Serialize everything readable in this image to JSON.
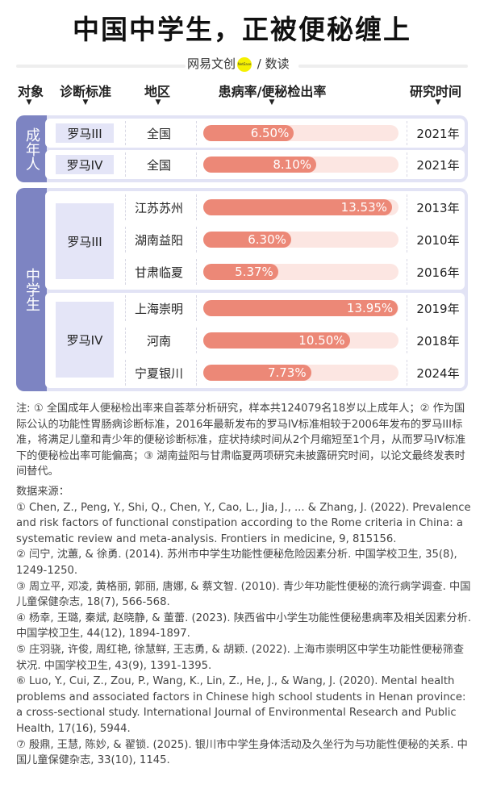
{
  "title": "中国中学生，正被便秘缠上",
  "brand": {
    "name": "网易文创",
    "badge": "NetEase",
    "sep": "/",
    "sub": "数读"
  },
  "headers": [
    "对象",
    "诊断标准",
    "地区",
    "患病率/便秘检出率",
    "研究时间"
  ],
  "arrow": "▼",
  "colors": {
    "group": "#7d84c2",
    "bar": "#ec8877",
    "track": "#fce6e2"
  },
  "rate_axis_max": 14,
  "adults": {
    "label": "成年人",
    "rows": [
      {
        "criterion": "罗马III",
        "region": "全国",
        "rate": 6.5,
        "rate_label": "6.50%",
        "year": "2021年"
      },
      {
        "criterion": "罗马IV",
        "region": "全国",
        "rate": 8.1,
        "rate_label": "8.10%",
        "year": "2021年"
      }
    ]
  },
  "students": {
    "label": "中学生",
    "criteria": [
      "罗马III",
      "罗马IV"
    ],
    "rows": [
      {
        "region": "江苏苏州",
        "rate": 13.53,
        "rate_label": "13.53%",
        "year": "2013年"
      },
      {
        "region": "湖南益阳",
        "rate": 6.3,
        "rate_label": "6.30%",
        "year": "2010年"
      },
      {
        "region": "甘肃临夏",
        "rate": 5.37,
        "rate_label": "5.37%",
        "year": "2016年"
      },
      {
        "region": "上海崇明",
        "rate": 13.95,
        "rate_label": "13.95%",
        "year": "2019年"
      },
      {
        "region": "河南",
        "rate": 10.5,
        "rate_label": "10.50%",
        "year": "2018年"
      },
      {
        "region": "宁夏银川",
        "rate": 7.73,
        "rate_label": "7.73%",
        "year": "2024年"
      }
    ]
  },
  "notes": "注: ① 全国成年人便秘检出率来自荟萃分析研究，样本共124079名18岁以上成年人；② 作为国际公认的功能性胃肠病诊断标准，2016年最新发布的罗马IV标准相较于2006年发布的罗马III标准，将满足儿童和青少年的便秘诊断标准，症状持续时间从2个月缩短至1个月，从而罗马IV标准下的便秘检出率可能偏高；③ 湖南益阳与甘肃临夏两项研究未披露研究时间，以论文最终发表时间替代。",
  "sources_title": "数据来源：",
  "sources": [
    "① Chen, Z., Peng, Y., Shi, Q., Chen, Y., Cao, L., Jia, J., ... & Zhang, J. (2022). Prevalence and risk factors of functional constipation according to the Rome criteria in China: a systematic review and meta-analysis. Frontiers in medicine, 9, 815156.",
    "② 闫宁, 沈蕙, & 徐勇. (2014). 苏州市中学生功能性便秘危险因素分析. 中国学校卫生, 35(8), 1249-1250.",
    "③ 周立平, 邓凌, 黄格丽, 郭丽, 唐娜, & 蔡文智. (2010). 青少年功能性便秘的流行病学调查. 中国儿童保健杂志, 18(7), 566-568.",
    "④ 杨幸, 王璐, 秦斌, 赵晓静, & 董蕾. (2023). 陕西省中小学生功能性便秘患病率及相关因素分析. 中国学校卫生, 44(12), 1894-1897.",
    "⑤ 庄羽骁, 许俊, 周红艳, 徐慧鲜, 王志勇, & 胡颖. (2022). 上海市崇明区中学生功能性便秘筛查状况. 中国学校卫生, 43(9), 1391-1395.",
    "⑥ Luo, Y., Cui, Z., Zou, P., Wang, K., Lin, Z., He, J., & Wang, J. (2020). Mental health problems and associated factors in Chinese high school students in Henan province: a cross-sectional study. International Journal of Environmental Research and Public Health, 17(16), 5944.",
    "⑦ 殷鼎, 王慧, 陈妙, & 翟锁. (2025). 银川市中学生身体活动及久坐行为与功能性便秘的关系. 中国儿童保健杂志, 33(10), 1145."
  ]
}
